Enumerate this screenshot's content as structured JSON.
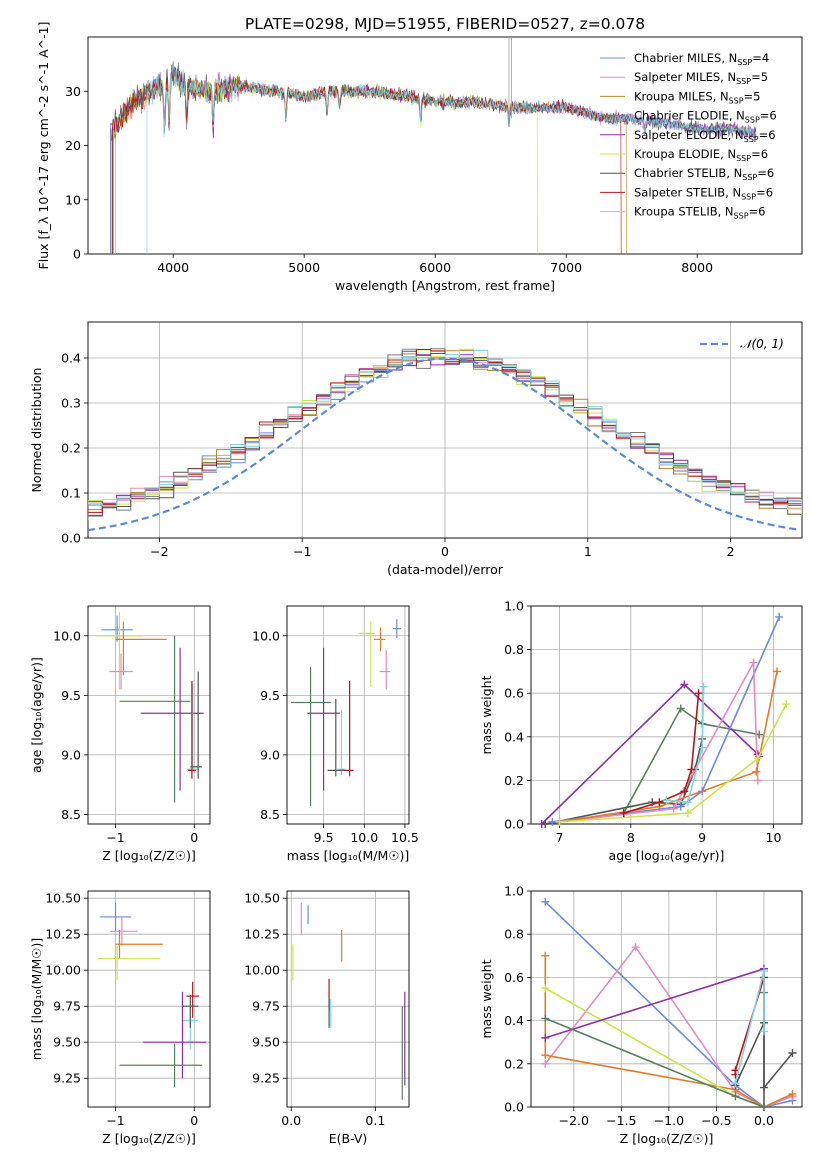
{
  "chart_data": [
    {
      "id": "spectrum",
      "type": "line",
      "title": "PLATE=0298, MJD=51955, FIBERID=0527, z=0.078",
      "xlabel": "wavelength [Angstrom, rest frame]",
      "ylabel": "Flux [f_λ 10^-17 erg cm^-2 s^-1 A^-1]",
      "xlim": [
        3350,
        8800
      ],
      "ylim": [
        0,
        40
      ],
      "xticks": [
        4000,
        5000,
        6000,
        7000,
        8000
      ],
      "yticks": [
        0,
        10,
        20,
        30
      ],
      "grid": false,
      "legend_position": "top-right",
      "legend": [
        {
          "name": "Chabrier MILES, N",
          "sub": "SSP",
          "suffix": "=4",
          "color": "#6b8be0"
        },
        {
          "name": "Salpeter MILES, N",
          "sub": "SSP",
          "suffix": "=5",
          "color": "#e58bc0"
        },
        {
          "name": "Kroupa MILES, N",
          "sub": "SSP",
          "suffix": "=5",
          "color": "#b38a2a"
        },
        {
          "name": "Chabrier ELODIE, N",
          "sub": "SSP",
          "suffix": "=6",
          "color": "#7a7a7a"
        },
        {
          "name": "Salpeter ELODIE, N",
          "sub": "SSP",
          "suffix": "=6",
          "color": "#8e2fa6"
        },
        {
          "name": "Kroupa ELODIE, N",
          "sub": "SSP",
          "suffix": "=6",
          "color": "#c8e64a"
        },
        {
          "name": "Chabrier STELIB, N",
          "sub": "SSP",
          "suffix": "=6",
          "color": "#555555"
        },
        {
          "name": "Salpeter STELIB, N",
          "sub": "SSP",
          "suffix": "=6",
          "color": "#b01818"
        },
        {
          "name": "Kroupa STELIB, N",
          "sub": "SSP",
          "suffix": "=6",
          "color": "#7fd6e0"
        }
      ],
      "continuum_x": [
        3540,
        3700,
        3900,
        4000,
        4100,
        4300,
        4500,
        4800,
        5000,
        5200,
        5500,
        5800,
        6000,
        6300,
        6600,
        6800,
        7000,
        7300,
        7500,
        7800,
        8000,
        8300,
        8500
      ],
      "continuum_y": [
        23,
        28,
        31,
        33,
        31,
        30,
        31,
        30,
        29,
        30,
        30,
        29,
        28,
        28,
        27,
        27,
        27,
        25,
        25,
        24,
        23,
        23,
        22
      ]
    },
    {
      "id": "residuals",
      "type": "line",
      "xlabel": "(data-model)/error",
      "ylabel": "Normed distribution",
      "xlim": [
        -2.5,
        2.5
      ],
      "ylim": [
        0,
        0.48
      ],
      "xticks": [
        -2,
        -1,
        0,
        1,
        2
      ],
      "yticks": [
        0.0,
        0.1,
        0.2,
        0.3,
        0.4
      ],
      "grid": true,
      "legend_position": "top-right",
      "legend": [
        {
          "name": "𝒩(0, 1)",
          "color": "#5b8ad8",
          "style": "dashed"
        }
      ]
    },
    {
      "id": "age-vs-Z",
      "type": "scatter",
      "xlabel": "Z [log₁₀(Z/Z☉)]",
      "ylabel": "age  [log₁₀(age/yr)]",
      "xlim": [
        -1.35,
        0.2
      ],
      "ylim": [
        8.42,
        10.25
      ],
      "xticks": [
        -1,
        0
      ],
      "yticks": [
        8.5,
        9.0,
        9.5,
        10.0
      ],
      "grid": true,
      "points": [
        {
          "x": -0.98,
          "y": 10.05,
          "xerr": [
            0.2,
            0.2
          ],
          "yerr": [
            0.1,
            0.12
          ],
          "color": "#6b8be0"
        },
        {
          "x": -0.95,
          "y": 10.0,
          "xerr": [
            0.3,
            0.3
          ],
          "yerr": [
            0.45,
            0.2
          ],
          "color": "#c8e64a"
        },
        {
          "x": -0.9,
          "y": 9.97,
          "xerr": [
            0.1,
            0.55
          ],
          "yerr": [
            0.3,
            0.15
          ],
          "color": "#e07b28"
        },
        {
          "x": -0.93,
          "y": 9.7,
          "xerr": [
            0.15,
            0.15
          ],
          "yerr": [
            0.15,
            0.15
          ],
          "color": "#e58bc0"
        },
        {
          "x": -0.25,
          "y": 9.45,
          "xerr": [
            0.7,
            0.2
          ],
          "yerr": [
            0.85,
            0.55
          ],
          "color": "#5b8060"
        },
        {
          "x": -0.18,
          "y": 9.35,
          "xerr": [
            0.5,
            0.3
          ],
          "yerr": [
            0.65,
            0.55
          ],
          "color": "#8e2fa6"
        },
        {
          "x": -0.02,
          "y": 8.88,
          "xerr": [
            0.08,
            0.08
          ],
          "yerr": [
            0.0,
            0.72
          ],
          "color": "#7fd6e0"
        },
        {
          "x": -0.03,
          "y": 8.87,
          "xerr": [
            0.05,
            0.05
          ],
          "yerr": [
            0.07,
            0.75
          ],
          "color": "#b01818"
        },
        {
          "x": 0.05,
          "y": 8.9,
          "xerr": [
            0.1,
            0.05
          ],
          "yerr": [
            0.1,
            0.8
          ],
          "color": "#555555"
        }
      ]
    },
    {
      "id": "age-vs-mass",
      "type": "scatter",
      "xlabel": "mass [log₁₀(M/M☉)]",
      "ylabel": "",
      "xlim": [
        9.05,
        10.55
      ],
      "ylim": [
        8.42,
        10.25
      ],
      "xticks": [
        9.5,
        10.0,
        10.5
      ],
      "yticks": [
        8.5,
        9.0,
        9.5,
        10.0
      ],
      "grid": true,
      "points": [
        {
          "x": 10.4,
          "y": 10.06,
          "xerr": [
            0.05,
            0.05
          ],
          "yerr": [
            0.08,
            0.08
          ],
          "color": "#6b8be0"
        },
        {
          "x": 10.08,
          "y": 10.02,
          "xerr": [
            0.15,
            0.05
          ],
          "yerr": [
            0.45,
            0.1
          ],
          "color": "#c8e64a"
        },
        {
          "x": 10.2,
          "y": 9.97,
          "xerr": [
            0.08,
            0.06
          ],
          "yerr": [
            0.1,
            0.1
          ],
          "color": "#e07b28"
        },
        {
          "x": 10.27,
          "y": 9.7,
          "xerr": [
            0.08,
            0.05
          ],
          "yerr": [
            0.15,
            0.18
          ],
          "color": "#e58bc0"
        },
        {
          "x": 9.34,
          "y": 9.44,
          "xerr": [
            0.24,
            0.25
          ],
          "yerr": [
            0.87,
            0.3
          ],
          "color": "#5b8060"
        },
        {
          "x": 9.5,
          "y": 9.35,
          "xerr": [
            0.2,
            0.2
          ],
          "yerr": [
            0.65,
            0.55
          ],
          "color": "#8e2fa6"
        },
        {
          "x": 9.72,
          "y": 8.88,
          "xerr": [
            0.05,
            0.05
          ],
          "yerr": [
            0.05,
            0.5
          ],
          "color": "#7fd6e0"
        },
        {
          "x": 9.82,
          "y": 8.87,
          "xerr": [
            0.1,
            0.05
          ],
          "yerr": [
            0.05,
            0.75
          ],
          "color": "#b01818"
        },
        {
          "x": 9.65,
          "y": 8.87,
          "xerr": [
            0.1,
            0.1
          ],
          "yerr": [
            0.05,
            0.6
          ],
          "color": "#555555"
        }
      ]
    },
    {
      "id": "weight-vs-age",
      "type": "line",
      "xlabel": "age  [log₁₀(age/yr)]",
      "ylabel": "mass weight",
      "xlim": [
        6.6,
        10.4
      ],
      "ylim": [
        0,
        1.0
      ],
      "xticks": [
        7,
        8,
        9,
        10
      ],
      "yticks": [
        0.0,
        0.2,
        0.4,
        0.6,
        0.8,
        1.0
      ],
      "grid": true,
      "series": [
        {
          "color": "#5b8060",
          "x": [
            6.8,
            7.9,
            8.7,
            9.0,
            9.8
          ],
          "y": [
            0.0,
            0.05,
            0.53,
            0.46,
            0.41
          ]
        },
        {
          "color": "#8e2fa6",
          "x": [
            6.75,
            8.75,
            9.78,
            9.8
          ],
          "y": [
            0.0,
            0.64,
            0.32,
            0.31
          ]
        },
        {
          "color": "#555555",
          "x": [
            6.8,
            8.3,
            8.7,
            8.9,
            9.0
          ],
          "y": [
            0.0,
            0.1,
            0.09,
            0.25,
            0.39
          ]
        },
        {
          "color": "#6b8be0",
          "x": [
            6.9,
            8.7,
            9.0,
            10.08
          ],
          "y": [
            0.01,
            0.08,
            0.15,
            0.95
          ]
        },
        {
          "color": "#e58bc0",
          "x": [
            7.0,
            8.6,
            9.72,
            9.78
          ],
          "y": [
            0.01,
            0.07,
            0.74,
            0.2
          ]
        },
        {
          "color": "#e07b28",
          "x": [
            7.0,
            8.4,
            9.76,
            10.05
          ],
          "y": [
            0.01,
            0.08,
            0.24,
            0.7
          ]
        },
        {
          "color": "#c8e64a",
          "x": [
            7.0,
            8.8,
            9.78,
            10.18
          ],
          "y": [
            0.01,
            0.05,
            0.3,
            0.55
          ]
        },
        {
          "color": "#b01818",
          "x": [
            7.9,
            8.4,
            8.75,
            8.85,
            8.95
          ],
          "y": [
            0.05,
            0.1,
            0.15,
            0.25,
            0.6
          ]
        },
        {
          "color": "#7fd6e0",
          "x": [
            8.5,
            8.8,
            9.0,
            9.02
          ],
          "y": [
            0.11,
            0.1,
            0.35,
            0.63
          ]
        }
      ]
    },
    {
      "id": "mass-vs-Z",
      "type": "scatter",
      "xlabel": "Z [log₁₀(Z/Z☉)]",
      "ylabel": "mass [log₁₀(M/M☉)]",
      "xlim": [
        -1.35,
        0.2
      ],
      "ylim": [
        9.05,
        10.55
      ],
      "xticks": [
        -1,
        0
      ],
      "yticks": [
        9.25,
        9.5,
        9.75,
        10.0,
        10.25,
        10.5
      ],
      "grid": true,
      "points": [
        {
          "x": -1.0,
          "y": 10.37,
          "xerr": [
            0.2,
            0.2
          ],
          "yerr": [
            0.1,
            0.1
          ],
          "color": "#6b8be0"
        },
        {
          "x": -0.92,
          "y": 10.27,
          "xerr": [
            0.15,
            0.2
          ],
          "yerr": [
            0.1,
            0.1
          ],
          "color": "#e58bc0"
        },
        {
          "x": -0.95,
          "y": 10.18,
          "xerr": [
            0.05,
            0.55
          ],
          "yerr": [
            0.1,
            0.1
          ],
          "color": "#e07b28"
        },
        {
          "x": -0.98,
          "y": 10.08,
          "xerr": [
            0.25,
            0.55
          ],
          "yerr": [
            0.15,
            0.1
          ],
          "color": "#c8e64a"
        },
        {
          "x": -0.02,
          "y": 9.82,
          "xerr": [
            0.08,
            0.08
          ],
          "yerr": [
            0.15,
            0.1
          ],
          "color": "#b01818"
        },
        {
          "x": -0.05,
          "y": 9.65,
          "xerr": [
            0.1,
            0.1
          ],
          "yerr": [
            0.2,
            0.1
          ],
          "color": "#7fd6e0"
        },
        {
          "x": -0.05,
          "y": 9.75,
          "xerr": [
            0.1,
            0.1
          ],
          "yerr": [
            0.15,
            0.08
          ],
          "color": "#555555"
        },
        {
          "x": -0.15,
          "y": 9.5,
          "xerr": [
            0.5,
            0.3
          ],
          "yerr": [
            0.25,
            0.35
          ],
          "color": "#8e2fa6"
        },
        {
          "x": -0.25,
          "y": 9.34,
          "xerr": [
            0.7,
            0.35
          ],
          "yerr": [
            0.15,
            0.15
          ],
          "color": "#5b8060"
        }
      ]
    },
    {
      "id": "mass-vs-EBV",
      "type": "scatter",
      "xlabel": "E(B-V)",
      "ylabel": "",
      "xlim": [
        -0.005,
        0.14
      ],
      "ylim": [
        9.05,
        10.55
      ],
      "xticks": [
        0.0,
        0.1
      ],
      "yticks": [
        9.25,
        9.5,
        9.75,
        10.0,
        10.25,
        10.5
      ],
      "grid": true,
      "points": [
        {
          "x": 0.02,
          "y": 10.37,
          "yerr": [
            0.05,
            0.08
          ],
          "color": "#6b8be0"
        },
        {
          "x": 0.012,
          "y": 10.37,
          "yerr": [
            0.12,
            0.1
          ],
          "color": "#e58bc0"
        },
        {
          "x": 0.06,
          "y": 10.18,
          "yerr": [
            0.12,
            0.1
          ],
          "color": "#e07b28"
        },
        {
          "x": 0.002,
          "y": 10.08,
          "yerr": [
            0.15,
            0.1
          ],
          "color": "#c8e64a"
        },
        {
          "x": 0.045,
          "y": 9.82,
          "yerr": [
            0.1,
            0.12
          ],
          "color": "#b01818"
        },
        {
          "x": 0.047,
          "y": 9.7,
          "yerr": [
            0.1,
            0.1
          ],
          "color": "#7fd6e0"
        },
        {
          "x": 0.045,
          "y": 9.72,
          "yerr": [
            0.12,
            0.1
          ],
          "color": "#555555"
        },
        {
          "x": 0.135,
          "y": 9.5,
          "yerr": [
            0.3,
            0.35
          ],
          "color": "#8e2fa6"
        },
        {
          "x": 0.132,
          "y": 9.45,
          "yerr": [
            0.35,
            0.3
          ],
          "color": "#5b8060"
        }
      ]
    },
    {
      "id": "weight-vs-Z",
      "type": "line",
      "xlabel": "Z [log₁₀(Z/Z☉)]",
      "ylabel": "mass weight",
      "xlim": [
        -2.45,
        0.4
      ],
      "ylim": [
        0,
        1.0
      ],
      "xticks": [
        -2.0,
        -1.5,
        -1.0,
        -0.5,
        0.0
      ],
      "yticks": [
        0.0,
        0.2,
        0.4,
        0.6,
        0.8,
        1.0
      ],
      "grid": true,
      "series": [
        {
          "color": "#6b8be0",
          "x": [
            -2.3,
            -0.3,
            0.0,
            0.3
          ],
          "y": [
            0.95,
            0.1,
            0.0,
            0.03
          ]
        },
        {
          "color": "#e58bc0",
          "x": [
            -2.3,
            -1.35,
            -0.3,
            0.0,
            0.3
          ],
          "y": [
            0.2,
            0.74,
            0.07,
            0.0,
            0.05
          ]
        },
        {
          "color": "#e07b28",
          "x": [
            -2.3,
            -2.3,
            -0.3,
            0.0,
            0.3
          ],
          "y": [
            0.7,
            0.24,
            0.08,
            0.0,
            0.06
          ]
        },
        {
          "color": "#c8e64a",
          "x": [
            -2.3,
            -0.3,
            0.0
          ],
          "y": [
            0.55,
            0.05,
            0.0
          ]
        },
        {
          "color": "#8e2fa6",
          "x": [
            -2.3,
            0.0,
            0.0
          ],
          "y": [
            0.32,
            0.64,
            0.0
          ]
        },
        {
          "color": "#5b8060",
          "x": [
            -2.3,
            -0.3,
            0.0,
            0.0
          ],
          "y": [
            0.41,
            0.05,
            0.0,
            0.53
          ]
        },
        {
          "color": "#555555",
          "x": [
            -0.3,
            0.0,
            0.0,
            0.3
          ],
          "y": [
            0.1,
            0.39,
            0.09,
            0.25
          ]
        },
        {
          "color": "#b01818",
          "x": [
            -0.3,
            -0.3,
            0.0
          ],
          "y": [
            0.15,
            0.17,
            0.6
          ]
        },
        {
          "color": "#7fd6e0",
          "x": [
            -0.3,
            0.0,
            0.0
          ],
          "y": [
            0.11,
            0.63,
            0.35
          ]
        }
      ]
    }
  ]
}
